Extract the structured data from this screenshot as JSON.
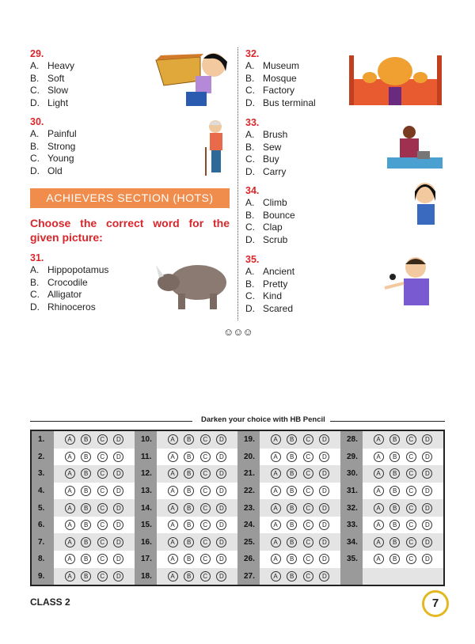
{
  "questions_left": [
    {
      "number": "29.",
      "options": [
        {
          "letter": "A.",
          "text": "Heavy"
        },
        {
          "letter": "B.",
          "text": "Soft"
        },
        {
          "letter": "C.",
          "text": "Slow"
        },
        {
          "letter": "D.",
          "text": "Light"
        }
      ]
    },
    {
      "number": "30.",
      "options": [
        {
          "letter": "A.",
          "text": "Painful"
        },
        {
          "letter": "B.",
          "text": "Strong"
        },
        {
          "letter": "C.",
          "text": "Young"
        },
        {
          "letter": "D.",
          "text": "Old"
        }
      ]
    },
    {
      "number": "31.",
      "options": [
        {
          "letter": "A.",
          "text": "Hippopotamus"
        },
        {
          "letter": "B.",
          "text": "Crocodile"
        },
        {
          "letter": "C.",
          "text": "Alligator"
        },
        {
          "letter": "D.",
          "text": "Rhinoceros"
        }
      ]
    }
  ],
  "questions_right": [
    {
      "number": "32.",
      "options": [
        {
          "letter": "A.",
          "text": "Museum"
        },
        {
          "letter": "B.",
          "text": "Mosque"
        },
        {
          "letter": "C.",
          "text": "Factory"
        },
        {
          "letter": "D.",
          "text": "Bus terminal"
        }
      ]
    },
    {
      "number": "33.",
      "options": [
        {
          "letter": "A.",
          "text": "Brush"
        },
        {
          "letter": "B.",
          "text": "Sew"
        },
        {
          "letter": "C.",
          "text": "Buy"
        },
        {
          "letter": "D.",
          "text": "Carry"
        }
      ]
    },
    {
      "number": "34.",
      "options": [
        {
          "letter": "A.",
          "text": "Climb"
        },
        {
          "letter": "B.",
          "text": "Bounce"
        },
        {
          "letter": "C.",
          "text": "Clap"
        },
        {
          "letter": "D.",
          "text": "Scrub"
        }
      ]
    },
    {
      "number": "35.",
      "options": [
        {
          "letter": "A.",
          "text": "Ancient"
        },
        {
          "letter": "B.",
          "text": "Pretty"
        },
        {
          "letter": "C.",
          "text": "Kind"
        },
        {
          "letter": "D.",
          "text": "Scared"
        }
      ]
    }
  ],
  "section_banner": "ACHIEVERS SECTION (HOTS)",
  "instruction": "Choose the correct word for the given picture:",
  "end_mark": "☺☺☺",
  "answer_sheet": {
    "title": "Darken your choice with HB Pencil",
    "bubbles": [
      "A",
      "B",
      "C",
      "D"
    ],
    "columns": [
      [
        "1.",
        "2.",
        "3.",
        "4.",
        "5.",
        "6.",
        "7.",
        "8.",
        "9."
      ],
      [
        "10.",
        "11.",
        "12.",
        "13.",
        "14.",
        "15.",
        "16.",
        "17.",
        "18."
      ],
      [
        "19.",
        "20.",
        "21.",
        "22.",
        "23.",
        "24.",
        "25.",
        "26.",
        "27."
      ],
      [
        "28.",
        "29.",
        "30.",
        "31.",
        "32.",
        "33.",
        "34.",
        "35.",
        ""
      ]
    ]
  },
  "footer": {
    "class_label": "CLASS 2",
    "page_number": "7"
  },
  "colors": {
    "question_number": "#d9262b",
    "banner": "#f08c4c",
    "page_ring": "#e3b820"
  }
}
